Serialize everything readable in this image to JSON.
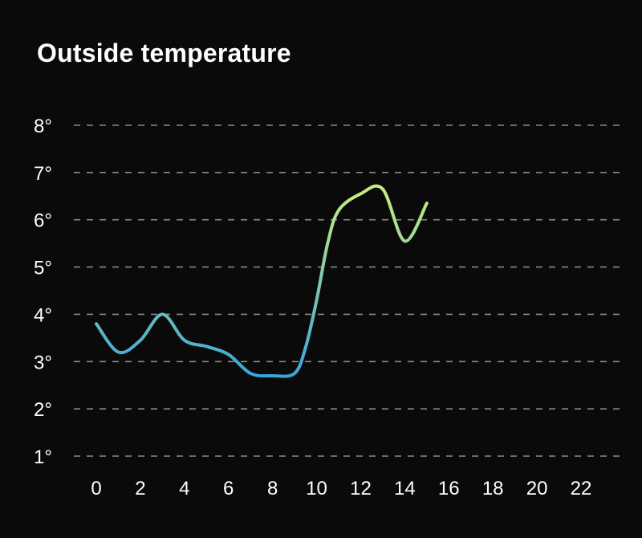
{
  "chart_data": {
    "type": "line",
    "title": "Outside temperature",
    "xlabel": "",
    "ylabel": "",
    "x_ticks": [
      "0",
      "2",
      "4",
      "6",
      "8",
      "10",
      "12",
      "14",
      "16",
      "18",
      "20",
      "22"
    ],
    "y_ticks": [
      "1°",
      "2°",
      "3°",
      "4°",
      "5°",
      "6°",
      "7°",
      "8°"
    ],
    "xlim": [
      0,
      22
    ],
    "ylim": [
      1,
      8
    ],
    "grid": true,
    "legend": "none",
    "series": [
      {
        "color_low": "#3aa6dd",
        "color_high": "#c8ec7e",
        "x": [
          0,
          1,
          2,
          3,
          4,
          5,
          6,
          7,
          8,
          9,
          9.5,
          10,
          10.5,
          11,
          12,
          13,
          14,
          15
        ],
        "values": [
          3.8,
          3.2,
          3.45,
          4.0,
          3.45,
          3.32,
          3.15,
          2.75,
          2.7,
          2.75,
          3.3,
          4.3,
          5.5,
          6.2,
          6.55,
          6.65,
          5.55,
          6.35
        ]
      }
    ]
  }
}
